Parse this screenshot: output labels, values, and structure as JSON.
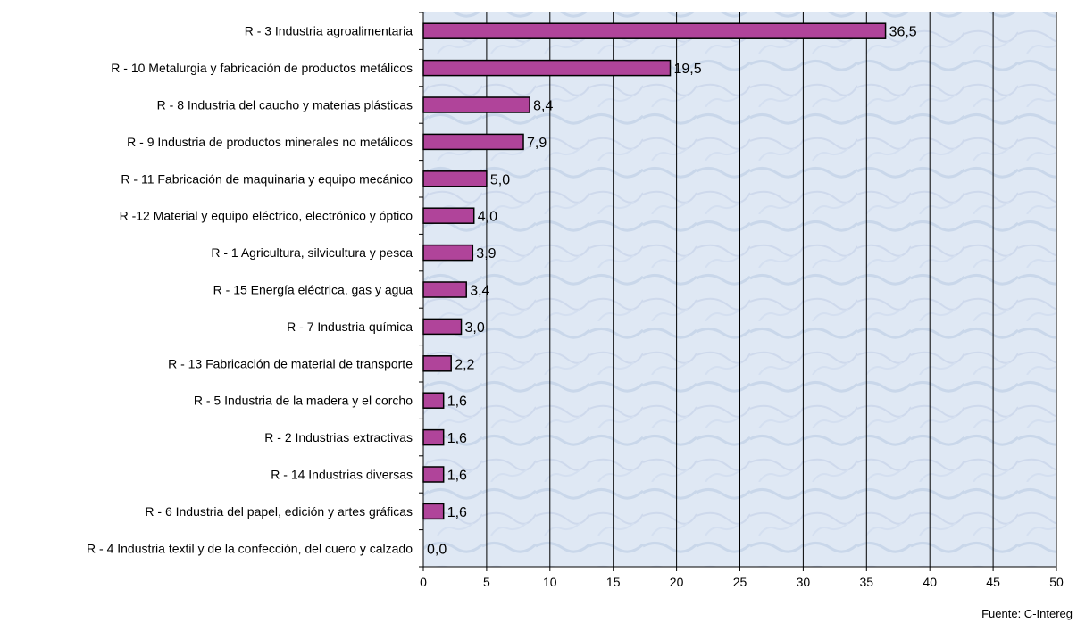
{
  "chart_data": {
    "type": "bar",
    "orientation": "horizontal",
    "categories": [
      "R - 3 Industria agroalimentaria",
      "R - 10 Metalurgia y fabricación de productos metálicos",
      "R - 8 Industria del caucho y materias plásticas",
      "R - 9 Industria de productos minerales no metálicos",
      "R - 11 Fabricación de maquinaria y equipo mecánico",
      "R -12 Material y equipo eléctrico, electrónico y óptico",
      "R - 1 Agricultura, silvicultura y pesca",
      "R - 15 Energía eléctrica, gas y agua",
      "R - 7 Industria química",
      "R - 13 Fabricación de material de transporte",
      "R - 5 Industria de la madera y el corcho",
      "R - 2 Industrias extractivas",
      "R - 14 Industrias diversas",
      "R - 6 Industria del papel, edición y artes gráficas",
      "R - 4 Industria textil y de la confección, del cuero y calzado"
    ],
    "values": [
      36.5,
      19.5,
      8.4,
      7.9,
      5.0,
      4.0,
      3.9,
      3.4,
      3.0,
      2.2,
      1.6,
      1.6,
      1.6,
      1.6,
      0.0
    ],
    "value_labels": [
      "36,5",
      "19,5",
      "8,4",
      "7,9",
      "5,0",
      "4,0",
      "3,9",
      "3,4",
      "3,0",
      "2,2",
      "1,6",
      "1,6",
      "1,6",
      "1,6",
      "0,0"
    ],
    "x_ticks": [
      "0",
      "5",
      "10",
      "15",
      "20",
      "25",
      "30",
      "35",
      "40",
      "45",
      "50"
    ],
    "xlim": [
      0,
      50
    ],
    "grid": "vertical",
    "legend": "none",
    "source": "Fuente: C-Intereg",
    "colors": {
      "bar_fill": "#b0449a",
      "bar_stroke": "#000000",
      "plot_background": "#dce6f2",
      "gridline": "#000000"
    }
  }
}
